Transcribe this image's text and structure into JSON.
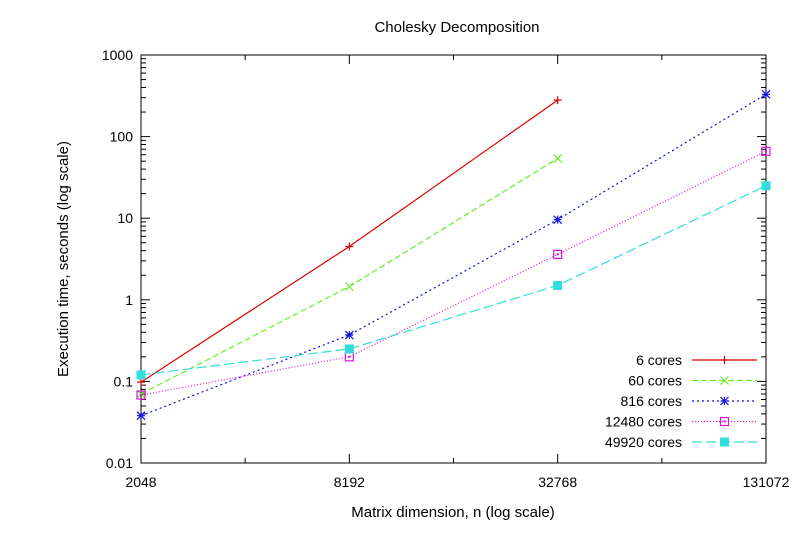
{
  "chart_data": {
    "type": "line",
    "title": "Cholesky Decomposition",
    "xlabel": "Matrix dimension, n (log scale)",
    "ylabel": "Execution time, seconds (log scale)",
    "x_scale": "log",
    "y_scale": "log",
    "xlim": [
      2048,
      131072
    ],
    "ylim": [
      0.01,
      1000
    ],
    "x_ticks": [
      2048,
      8192,
      32768,
      131072
    ],
    "x_tick_labels": [
      "2048",
      "8192",
      "32768",
      "131072"
    ],
    "y_ticks": [
      0.01,
      0.1,
      1,
      10,
      100,
      1000
    ],
    "y_tick_labels": [
      "0.01",
      "0.1",
      "1",
      "10",
      "100",
      "1000"
    ],
    "grid": false,
    "legend_position": "bottom-right",
    "series": [
      {
        "name": "6 cores",
        "color": "#dd0000",
        "dash": "solid",
        "marker": "plus",
        "x": [
          2048,
          8192,
          32768
        ],
        "y": [
          0.098,
          4.5,
          280
        ]
      },
      {
        "name": "60 cores",
        "color": "#66ee22",
        "dash": "dashed",
        "marker": "cross",
        "x": [
          2048,
          8192,
          32768
        ],
        "y": [
          0.07,
          1.45,
          54
        ]
      },
      {
        "name": "816 cores",
        "color": "#1111dd",
        "dash": "dotted",
        "marker": "star",
        "x": [
          2048,
          8192,
          32768,
          131072
        ],
        "y": [
          0.038,
          0.37,
          9.6,
          330
        ]
      },
      {
        "name": "12480 cores",
        "color": "#dd11dd",
        "dash": "dotted-fine",
        "marker": "box",
        "x": [
          2048,
          8192,
          32768,
          131072
        ],
        "y": [
          0.068,
          0.2,
          3.6,
          66
        ]
      },
      {
        "name": "49920 cores",
        "color": "#33dddd",
        "dash": "long-dash",
        "marker": "filled-box",
        "x": [
          2048,
          8192,
          32768,
          131072
        ],
        "y": [
          0.12,
          0.25,
          1.5,
          25
        ]
      }
    ]
  }
}
